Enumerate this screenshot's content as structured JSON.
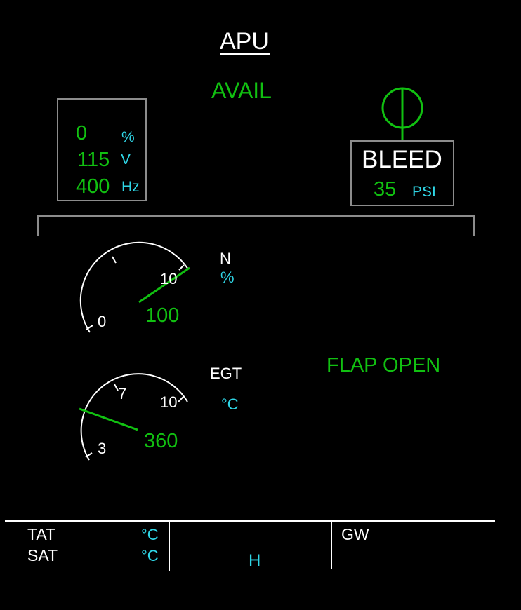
{
  "page": {
    "title": "APU",
    "status": "AVAIL"
  },
  "gen_box": {
    "load_value": "0",
    "load_unit": "%",
    "volt_value": "115",
    "volt_unit": "V",
    "freq_value": "400",
    "freq_unit": "Hz"
  },
  "bleed_box": {
    "label": "BLEED",
    "pressure_value": "35",
    "pressure_unit": "PSI",
    "valve_state": "open"
  },
  "n_gauge": {
    "label": "N",
    "unit": "%",
    "scale_min_label": "0",
    "scale_max_label": "10",
    "value": "100"
  },
  "egt_gauge": {
    "label": "EGT",
    "unit": "°C",
    "scale_low_label": "3",
    "scale_mid_label": "7",
    "scale_max_label": "10",
    "value": "360"
  },
  "flap_status": "FLAP OPEN",
  "bottom_bar": {
    "tat_label": "TAT",
    "tat_unit": "°C",
    "sat_label": "SAT",
    "sat_unit": "°C",
    "time_h": "H",
    "gw_label": "GW"
  },
  "colors": {
    "background": "#000000",
    "green": "#11c011",
    "cyan": "#2fd6e6",
    "white": "#ffffff",
    "grey": "#8c8c8c"
  }
}
